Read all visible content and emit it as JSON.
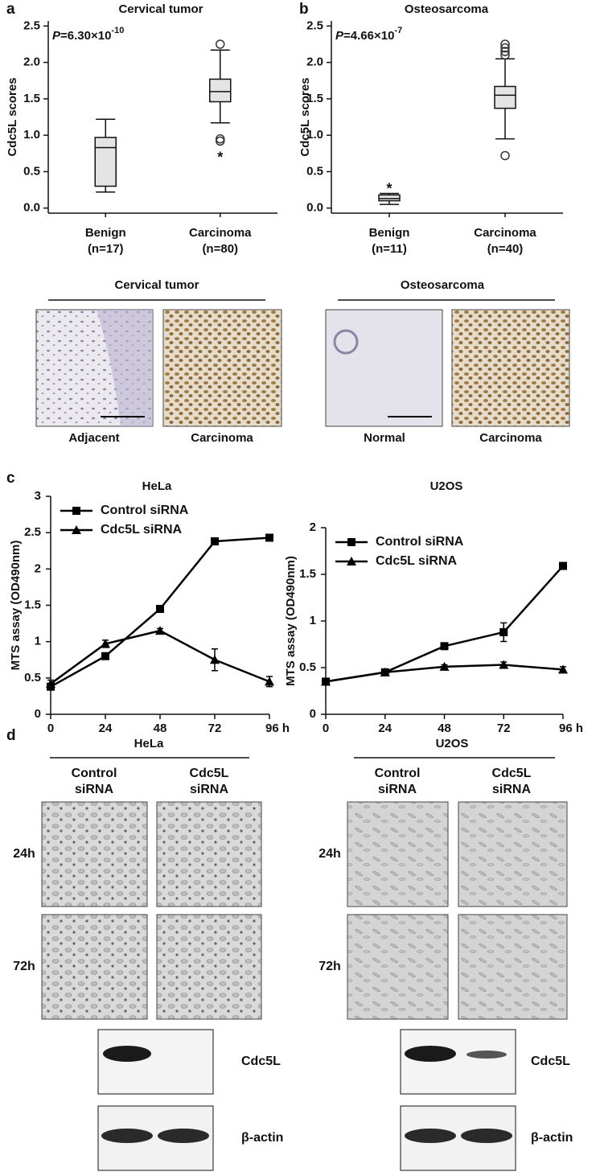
{
  "panel_labels": [
    "a",
    "b",
    "c",
    "d"
  ],
  "chart_data": [
    {
      "type": "box",
      "title": "Cervical tumor",
      "ylabel": "Cdc5L scores",
      "p_value": {
        "symbol": "P",
        "text": "=6.30×10",
        "exponent": "-10"
      },
      "categories": [
        "Benign",
        "Carcinoma"
      ],
      "n_labels": [
        "(n=17)",
        "(n=80)"
      ],
      "ylim": [
        -0.07,
        2.57
      ],
      "yticks": [
        {
          "value": 0,
          "label": "0.0"
        },
        0.5,
        {
          "value": 1,
          "label": "1.0"
        },
        1.5,
        {
          "value": 2,
          "label": "2.0"
        },
        2.5
      ],
      "color": "#e4e4e4",
      "extreme_marker": "*",
      "boxes": [
        {
          "whislo": 0.22,
          "q1": 0.3,
          "med": 0.83,
          "q3": 0.97,
          "whishi": 1.22,
          "outliers": [],
          "extremes": []
        },
        {
          "whislo": 1.17,
          "q1": 1.46,
          "med": 1.6,
          "q3": 1.77,
          "whishi": 2.17,
          "outliers": [
            2.25,
            0.95,
            0.92
          ],
          "extremes": [
            0.73
          ]
        }
      ]
    },
    {
      "type": "box",
      "title": "Osteosarcoma",
      "ylabel": "Cdc5L scores",
      "p_value": {
        "symbol": "P",
        "text": "=4.66×10",
        "exponent": "-7"
      },
      "categories": [
        "Benign",
        "Carcinoma"
      ],
      "n_labels": [
        "(n=11)",
        "(n=40)"
      ],
      "ylim": [
        -0.07,
        2.57
      ],
      "yticks": [
        {
          "value": 0,
          "label": "0.0"
        },
        0.5,
        {
          "value": 1,
          "label": "1.0"
        },
        1.5,
        {
          "value": 2,
          "label": "2.0"
        },
        2.5
      ],
      "color": "#e4e4e4",
      "extreme_marker": "*",
      "boxes": [
        {
          "whislo": 0.05,
          "q1": 0.1,
          "med": 0.13,
          "q3": 0.18,
          "whishi": 0.2,
          "outliers": [],
          "extremes": [
            0.3
          ]
        },
        {
          "whislo": 0.95,
          "q1": 1.37,
          "med": 1.55,
          "q3": 1.67,
          "whishi": 2.05,
          "outliers": [
            2.1,
            2.15,
            2.2,
            2.25,
            0.72
          ],
          "extremes": []
        }
      ]
    },
    {
      "type": "line",
      "title": "HeLa",
      "ylabel": "MTS assay (OD490nm)",
      "x": [
        0,
        24,
        48,
        72,
        96
      ],
      "xlim": [
        0,
        96
      ],
      "xticks": [
        0,
        24,
        48,
        72,
        {
          "value": 96,
          "label": "96 h"
        }
      ],
      "ylim": [
        0,
        3
      ],
      "yticks": [
        0,
        0.5,
        1,
        1.5,
        2,
        2.5,
        3
      ],
      "legend": "upper left",
      "series": [
        {
          "name": "Control siRNA",
          "color": "#000000",
          "marker": "square",
          "values": [
            0.38,
            0.8,
            1.45,
            2.38,
            2.43
          ],
          "errors": [
            0.03,
            0.04,
            0.03,
            0.03,
            0.03
          ]
        },
        {
          "name": "Cdc5L siRNA",
          "color": "#000000",
          "marker": "triangle",
          "values": [
            0.42,
            0.97,
            1.15,
            0.75,
            0.45
          ],
          "errors": [
            0.05,
            0.05,
            0.03,
            0.15,
            0.07
          ]
        }
      ]
    },
    {
      "type": "line",
      "title": "U2OS",
      "ylabel": "MTS assay (OD490nm)",
      "x": [
        0,
        24,
        48,
        72,
        96
      ],
      "xlim": [
        0,
        96
      ],
      "xticks": [
        0,
        24,
        48,
        72,
        {
          "value": 96,
          "label": "96 h"
        }
      ],
      "ylim": [
        0,
        2
      ],
      "yticks": [
        0,
        0.5,
        1,
        1.5,
        2
      ],
      "legend": "upper left",
      "series": [
        {
          "name": "Control siRNA",
          "color": "#000000",
          "marker": "square",
          "values": [
            0.35,
            0.45,
            0.73,
            0.88,
            1.59
          ],
          "errors": [
            0.02,
            0.02,
            0.02,
            0.1,
            0.03
          ]
        },
        {
          "name": "Cdc5L siRNA",
          "color": "#000000",
          "marker": "triangle",
          "values": [
            0.35,
            0.45,
            0.51,
            0.53,
            0.48
          ],
          "errors": [
            0.02,
            0.02,
            0.02,
            0.03,
            0.03
          ]
        }
      ]
    }
  ],
  "ihc": [
    {
      "title": "Cervical tumor",
      "captions": [
        "Adjacent",
        "Carcinoma"
      ]
    },
    {
      "title": "Osteosarcoma",
      "captions": [
        "Normal",
        "Carcinoma"
      ]
    }
  ],
  "cell_images": [
    {
      "title": "HeLa",
      "columns": [
        [
          "Control",
          "siRNA"
        ],
        [
          "Cdc5L",
          "siRNA"
        ]
      ],
      "rows": [
        "24h",
        "72h"
      ],
      "blots": [
        "Cdc5L",
        "β-actin"
      ]
    },
    {
      "title": "U2OS",
      "columns": [
        [
          "Control",
          "siRNA"
        ],
        [
          "Cdc5L",
          "siRNA"
        ]
      ],
      "rows": [
        "24h",
        "72h"
      ],
      "blots": [
        "Cdc5L",
        "β-actin"
      ]
    }
  ]
}
